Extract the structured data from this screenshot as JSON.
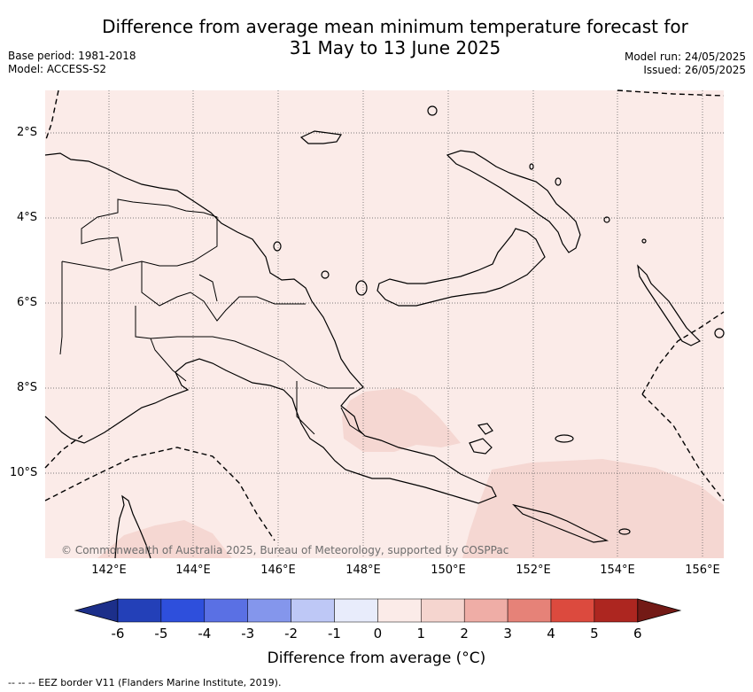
{
  "title_line1": "Difference from average mean minimum temperature forecast for",
  "title_line2": "31 May to 13 June 2025",
  "base_period": "Base period: 1981-2018",
  "model": "Model: ACCESS-S2",
  "model_run": "Model run: 24/05/2025",
  "issued": "Issued: 26/05/2025",
  "lat_labels": [
    "2°S",
    "4°S",
    "6°S",
    "8°S",
    "10°S"
  ],
  "lon_labels": [
    "142°E",
    "144°E",
    "146°E",
    "148°E",
    "150°E",
    "152°E",
    "154°E",
    "156°E"
  ],
  "copyright": "© Commonwealth of Australia 2025, Bureau of Meteorology, supported by COSPPac",
  "colorbar": {
    "ticks": [
      "-6",
      "-5",
      "-4",
      "-3",
      "-2",
      "-1",
      "0",
      "1",
      "2",
      "3",
      "4",
      "5",
      "6"
    ],
    "colors": [
      "#1c2f8a",
      "#2340b8",
      "#2e4fdc",
      "#5a70e4",
      "#8496ec",
      "#bec8f6",
      "#e8ecfb",
      "#fbebe8",
      "#f5d5cf",
      "#efada6",
      "#e68278",
      "#dc4a3e",
      "#ad2620",
      "#731a16"
    ],
    "title": "Difference from average (°C)"
  },
  "footer": "-- -- -- EEZ border V11 (Flanders Marine Institute, 2019).",
  "map_colors": {
    "background": "#fbebe8",
    "warm_anomaly": "#f5d7d2"
  }
}
